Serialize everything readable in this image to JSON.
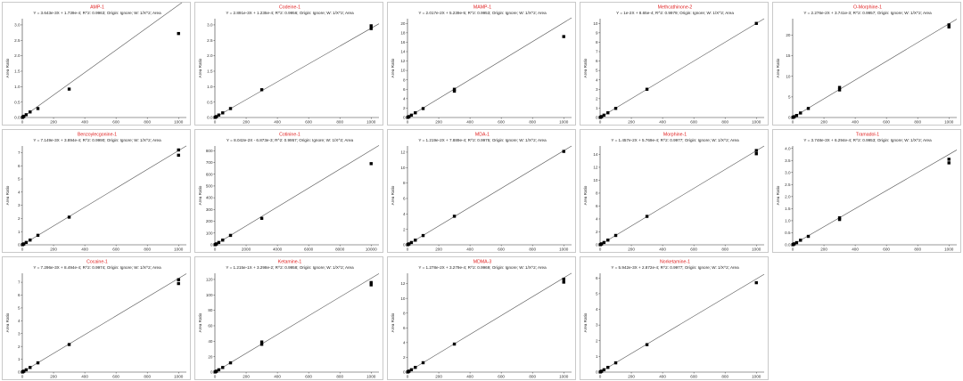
{
  "chart_data": [
    {
      "type": "scatter",
      "title": "AMP-1",
      "equation": "Y = 3.643e-3X + 1.739e-4; R^2: 0.9963; Origin: Ignore; W: 1/X^2; Area",
      "ylabel": "Area Ratio",
      "xticks": [
        0,
        200,
        400,
        600,
        800,
        1000
      ],
      "yticks": [
        0.0,
        0.5,
        1.0,
        1.5,
        2.0,
        2.5,
        3.0
      ],
      "ylim": [
        0,
        3.2
      ],
      "xlim": [
        0,
        1050
      ],
      "points": [
        [
          1,
          0.003
        ],
        [
          5,
          0.02
        ],
        [
          10,
          0.04
        ],
        [
          25,
          0.09
        ],
        [
          50,
          0.18
        ],
        [
          100,
          0.29
        ],
        [
          300,
          0.92
        ],
        [
          1000,
          2.72
        ]
      ],
      "fit": [
        [
          0,
          0.0002
        ],
        [
          1050,
          3.825
        ]
      ]
    },
    {
      "type": "scatter",
      "title": "Codeine-1",
      "equation": "Y = 2.891e-3X + 1.235e-4; R^2: 0.9956; Origin: Ignore; W: 1/X^2; Area",
      "ylabel": "Area Ratio",
      "xticks": [
        0,
        200,
        400,
        600,
        800,
        1000
      ],
      "yticks": [
        0.0,
        0.5,
        1.0,
        1.5,
        2.0,
        2.5,
        3.0
      ],
      "ylim": [
        0,
        3.2
      ],
      "xlim": [
        0,
        1050
      ],
      "points": [
        [
          1,
          0.003
        ],
        [
          5,
          0.015
        ],
        [
          10,
          0.03
        ],
        [
          25,
          0.08
        ],
        [
          50,
          0.15
        ],
        [
          100,
          0.29
        ],
        [
          300,
          0.9
        ],
        [
          1000,
          2.97
        ],
        [
          1000,
          2.88
        ]
      ],
      "fit": [
        [
          0,
          0.0001
        ],
        [
          1050,
          3.036
        ]
      ]
    },
    {
      "type": "scatter",
      "title": "MAMP-1",
      "equation": "Y = 2.017e-2X + 5.239e-5; R^2: 0.9953; Origin: Ignore; W: 1/X^2; Area",
      "ylabel": "Area Ratio",
      "xticks": [
        0,
        200,
        400,
        600,
        800,
        1000
      ],
      "yticks": [
        0,
        2,
        4,
        6,
        8,
        10,
        12,
        14,
        16,
        18,
        20
      ],
      "ylim": [
        0,
        21
      ],
      "xlim": [
        0,
        1050
      ],
      "points": [
        [
          1,
          0.02
        ],
        [
          5,
          0.1
        ],
        [
          10,
          0.2
        ],
        [
          25,
          0.5
        ],
        [
          50,
          1.0
        ],
        [
          100,
          1.9
        ],
        [
          300,
          5.6
        ],
        [
          300,
          6.0
        ],
        [
          1000,
          17.2
        ]
      ],
      "fit": [
        [
          0,
          0.0001
        ],
        [
          1050,
          21.18
        ]
      ]
    },
    {
      "type": "scatter",
      "title": "Methcathinone-2",
      "equation": "Y = 1e-2X + 8.65e-4; R^2: 0.9979; Origin: Ignore; W: 1/X^2; Area",
      "ylabel": "Area Ratio",
      "xticks": [
        0,
        200,
        400,
        600,
        800,
        1000
      ],
      "yticks": [
        0,
        1,
        2,
        3,
        4,
        5,
        6,
        7,
        8,
        9,
        10
      ],
      "ylim": [
        0,
        10.5
      ],
      "xlim": [
        0,
        1050
      ],
      "points": [
        [
          1,
          0.01
        ],
        [
          5,
          0.05
        ],
        [
          10,
          0.1
        ],
        [
          25,
          0.25
        ],
        [
          50,
          0.5
        ],
        [
          100,
          0.97
        ],
        [
          300,
          3.0
        ],
        [
          1000,
          10.0
        ]
      ],
      "fit": [
        [
          0,
          0.0009
        ],
        [
          1050,
          10.5
        ]
      ]
    },
    {
      "type": "scatter",
      "title": "O-Morphine-1",
      "equation": "Y = 2.276e-2X + 3.741e-3; R^2: 0.9957; Origin: Ignore; W: 1/X^2; Area",
      "ylabel": "Area Ratio",
      "xticks": [
        0,
        200,
        400,
        600,
        800,
        1000
      ],
      "yticks": [
        0,
        5,
        10,
        15,
        20
      ],
      "ylim": [
        0,
        24
      ],
      "xlim": [
        0,
        1050
      ],
      "points": [
        [
          1,
          0.02
        ],
        [
          5,
          0.1
        ],
        [
          10,
          0.2
        ],
        [
          25,
          0.5
        ],
        [
          50,
          1.1
        ],
        [
          100,
          2.2
        ],
        [
          300,
          6.7
        ],
        [
          300,
          7.3
        ],
        [
          1000,
          22.0
        ],
        [
          1000,
          22.5
        ]
      ],
      "fit": [
        [
          0,
          0.0037
        ],
        [
          1050,
          23.9
        ]
      ]
    },
    {
      "type": "scatter",
      "title": "Benzoylecgonine-1",
      "equation": "Y = 7.149e-3X + 3.894e-4; R^2: 0.9990; Origin: Ignore; W: 1/X^2; Area",
      "ylabel": "Area Ratio",
      "xticks": [
        0,
        200,
        400,
        600,
        800,
        1000
      ],
      "yticks": [
        0,
        1,
        2,
        3,
        4,
        5,
        6,
        7
      ],
      "ylim": [
        0,
        7.5
      ],
      "xlim": [
        0,
        1050
      ],
      "points": [
        [
          1,
          0.007
        ],
        [
          5,
          0.035
        ],
        [
          10,
          0.07
        ],
        [
          25,
          0.18
        ],
        [
          50,
          0.36
        ],
        [
          100,
          0.72
        ],
        [
          300,
          2.1
        ],
        [
          1000,
          6.8
        ],
        [
          1000,
          7.2
        ]
      ],
      "fit": [
        [
          0,
          0.0004
        ],
        [
          1050,
          7.507
        ]
      ]
    },
    {
      "type": "scatter",
      "title": "Cotinine-1",
      "equation": "Y = 8.042e-2X - 6.873e-3; R^2: 0.9957; Origin: Ignore; W: 1/X^2; Area",
      "ylabel": "Area Ratio",
      "xticks": [
        0,
        2000,
        4000,
        6000,
        8000,
        10000
      ],
      "yticks": [
        0,
        100,
        200,
        300,
        400,
        500,
        600,
        700,
        800
      ],
      "ylim": [
        0,
        840
      ],
      "xlim": [
        0,
        10500
      ],
      "points": [
        [
          10,
          0.8
        ],
        [
          50,
          4
        ],
        [
          100,
          8
        ],
        [
          250,
          20
        ],
        [
          500,
          40
        ],
        [
          1000,
          80
        ],
        [
          3000,
          225
        ],
        [
          10000,
          690
        ]
      ],
      "fit": [
        [
          0,
          -0.007
        ],
        [
          10500,
          844.4
        ]
      ]
    },
    {
      "type": "scatter",
      "title": "MDA-1",
      "equation": "Y = 1.219e-2X + 7.889e-4; R^2: 0.9975; Origin: Ignore; W: 1/X^2; Area",
      "ylabel": "Area Ratio",
      "xticks": [
        0,
        200,
        400,
        600,
        800,
        1000
      ],
      "yticks": [
        0,
        2,
        4,
        6,
        8,
        10,
        12
      ],
      "ylim": [
        0,
        12.8
      ],
      "xlim": [
        0,
        1050
      ],
      "points": [
        [
          1,
          0.012
        ],
        [
          5,
          0.06
        ],
        [
          10,
          0.12
        ],
        [
          25,
          0.3
        ],
        [
          50,
          0.6
        ],
        [
          100,
          1.2
        ],
        [
          300,
          3.7
        ],
        [
          1000,
          12.1
        ]
      ],
      "fit": [
        [
          0,
          0.0008
        ],
        [
          1050,
          12.8
        ]
      ]
    },
    {
      "type": "scatter",
      "title": "Morphine-1",
      "equation": "Y = 1.457e-2X + 5.769e-4; R^2: 0.9977; Origin: Ignore; W: 1/X^2; Area",
      "ylabel": "Area Ratio",
      "xticks": [
        0,
        200,
        400,
        600,
        800,
        1000
      ],
      "yticks": [
        0,
        2,
        4,
        6,
        8,
        10,
        12,
        14
      ],
      "ylim": [
        0,
        15.3
      ],
      "xlim": [
        0,
        1050
      ],
      "points": [
        [
          1,
          0.015
        ],
        [
          5,
          0.07
        ],
        [
          10,
          0.15
        ],
        [
          25,
          0.36
        ],
        [
          50,
          0.73
        ],
        [
          100,
          1.45
        ],
        [
          300,
          4.4
        ],
        [
          1000,
          14.1
        ],
        [
          1000,
          14.6
        ]
      ],
      "fit": [
        [
          0,
          0.0006
        ],
        [
          1050,
          15.3
        ]
      ]
    },
    {
      "type": "scatter",
      "title": "Tramadol-1",
      "equation": "Y = 3.748e-3X + 6.294e-4; R^2: 0.9953; Origin: Ignore; W: 1/X^2; Area",
      "ylabel": "Area Ratio",
      "xticks": [
        0,
        200,
        400,
        600,
        800,
        1000
      ],
      "yticks": [
        0.0,
        0.5,
        1.0,
        1.5,
        2.0,
        2.5,
        3.0,
        3.5,
        4.0
      ],
      "ylim": [
        0,
        4.1
      ],
      "xlim": [
        0,
        1050
      ],
      "points": [
        [
          1,
          0.004
        ],
        [
          5,
          0.02
        ],
        [
          10,
          0.04
        ],
        [
          25,
          0.09
        ],
        [
          50,
          0.19
        ],
        [
          100,
          0.35
        ],
        [
          300,
          1.05
        ],
        [
          300,
          1.12
        ],
        [
          1000,
          3.4
        ],
        [
          1000,
          3.55
        ]
      ],
      "fit": [
        [
          0,
          0.0006
        ],
        [
          1050,
          3.936
        ]
      ]
    },
    {
      "type": "scatter",
      "title": "Cocaine-1",
      "equation": "Y = 7.296e-3X + 8.494e-4; R^2: 0.9974; Origin: Ignore; W: 1/X^2; Area",
      "ylabel": "Area Ratio",
      "xticks": [
        0,
        200,
        400,
        600,
        800,
        1000
      ],
      "yticks": [
        0,
        1,
        2,
        3,
        4,
        5,
        6,
        7
      ],
      "ylim": [
        0,
        7.7
      ],
      "xlim": [
        0,
        1050
      ],
      "points": [
        [
          1,
          0.007
        ],
        [
          5,
          0.037
        ],
        [
          10,
          0.073
        ],
        [
          25,
          0.18
        ],
        [
          50,
          0.36
        ],
        [
          100,
          0.72
        ],
        [
          300,
          2.15
        ],
        [
          1000,
          6.9
        ],
        [
          1000,
          7.2
        ]
      ],
      "fit": [
        [
          0,
          0.0008
        ],
        [
          1050,
          7.662
        ]
      ]
    },
    {
      "type": "scatter",
      "title": "Ketamine-1",
      "equation": "Y = 1.215e-1X + 3.298e-2; R^2: 0.9958; Origin: Ignore; W: 1/X^2; Area",
      "ylabel": "Area Ratio",
      "xticks": [
        0,
        200,
        400,
        600,
        800,
        1000
      ],
      "yticks": [
        0,
        20,
        40,
        60,
        80,
        100,
        120
      ],
      "ylim": [
        0,
        128
      ],
      "xlim": [
        0,
        1050
      ],
      "points": [
        [
          1,
          0.12
        ],
        [
          5,
          0.6
        ],
        [
          10,
          1.2
        ],
        [
          25,
          3
        ],
        [
          50,
          6
        ],
        [
          100,
          12
        ],
        [
          300,
          36
        ],
        [
          300,
          39
        ],
        [
          1000,
          113
        ],
        [
          1000,
          116
        ]
      ],
      "fit": [
        [
          0,
          0.033
        ],
        [
          1050,
          127.6
        ]
      ]
    },
    {
      "type": "scatter",
      "title": "MDMA-3",
      "equation": "Y = 1.278e-2X + 3.279e-4; R^2: 0.9969; Origin: Ignore; W: 1/X^2; Area",
      "ylabel": "Area Ratio",
      "xticks": [
        0,
        200,
        400,
        600,
        800,
        1000
      ],
      "yticks": [
        0,
        2,
        4,
        6,
        8,
        10,
        12
      ],
      "ylim": [
        0,
        13.4
      ],
      "xlim": [
        0,
        1050
      ],
      "points": [
        [
          1,
          0.013
        ],
        [
          5,
          0.064
        ],
        [
          10,
          0.13
        ],
        [
          25,
          0.32
        ],
        [
          50,
          0.64
        ],
        [
          100,
          1.27
        ],
        [
          300,
          3.8
        ],
        [
          1000,
          12.2
        ],
        [
          1000,
          12.6
        ]
      ],
      "fit": [
        [
          0,
          0.0003
        ],
        [
          1050,
          13.42
        ]
      ]
    },
    {
      "type": "scatter",
      "title": "Norketamine-1",
      "equation": "Y = 5.942e-3X + 2.872e-4; R^2: 0.9977; Origin: Ignore; W: 1/X^2; Area",
      "ylabel": "Area Ratio",
      "xticks": [
        0,
        200,
        400,
        600,
        800,
        1000
      ],
      "yticks": [
        0,
        1,
        2,
        3,
        4,
        5,
        6
      ],
      "ylim": [
        0,
        6.3
      ],
      "xlim": [
        0,
        1050
      ],
      "points": [
        [
          1,
          0.006
        ],
        [
          5,
          0.03
        ],
        [
          10,
          0.06
        ],
        [
          25,
          0.15
        ],
        [
          50,
          0.3
        ],
        [
          100,
          0.59
        ],
        [
          300,
          1.75
        ],
        [
          1000,
          5.7
        ]
      ],
      "fit": [
        [
          0,
          0.0003
        ],
        [
          1050,
          6.239
        ]
      ]
    }
  ]
}
